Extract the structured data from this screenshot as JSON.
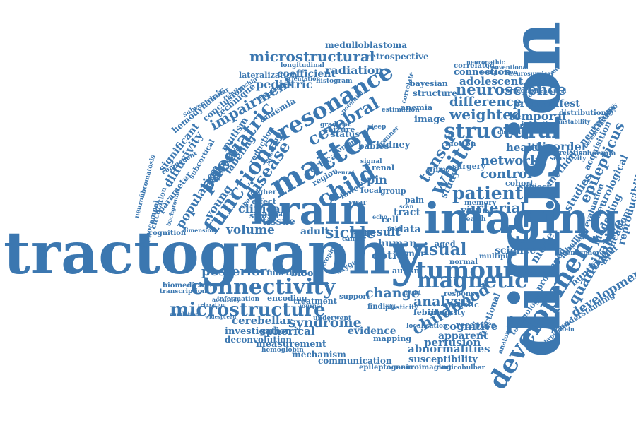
{
  "color": "#3b77b0",
  "words": [
    {
      "key": "tractography",
      "text": "tractography"
    },
    {
      "key": "diffusion",
      "text": "diffusion"
    },
    {
      "key": "imaging",
      "text": "imaging"
    },
    {
      "key": "brain",
      "text": "brain"
    },
    {
      "key": "matter",
      "text": "matter"
    },
    {
      "key": "development",
      "text": "development"
    },
    {
      "key": "tumour",
      "text": "tumour"
    },
    {
      "key": "connectivity",
      "text": "connectivity"
    },
    {
      "key": "microstructure",
      "text": "microstructure"
    },
    {
      "key": "magnetic",
      "text": "magnetic"
    },
    {
      "key": "structural",
      "text": "structural"
    },
    {
      "key": "resonance",
      "text": "resonance"
    },
    {
      "key": "functional",
      "text": "functional"
    },
    {
      "key": "paediatric",
      "text": "paediatric"
    },
    {
      "key": "child",
      "text": "child"
    },
    {
      "key": "white",
      "text": "white"
    },
    {
      "key": "childhood",
      "text": "childhood"
    },
    {
      "key": "microstructural",
      "text": "microstructural"
    },
    {
      "key": "neuroscience",
      "text": "neuroscience"
    },
    {
      "key": "patient",
      "text": "patient"
    },
    {
      "key": "visual",
      "text": "visual"
    },
    {
      "key": "syndrome",
      "text": "syndrome"
    },
    {
      "key": "impairment",
      "text": "impairment"
    },
    {
      "key": "cerebral",
      "text": "cerebral"
    },
    {
      "key": "disease",
      "text": "disease"
    },
    {
      "key": "weighted",
      "text": "weighted"
    },
    {
      "key": "difference",
      "text": "difference"
    },
    {
      "key": "arterial",
      "text": "arterial"
    },
    {
      "key": "epilepticus",
      "text": "epilepticus"
    },
    {
      "key": "quantitative",
      "text": "quantitative"
    },
    {
      "key": "developmental",
      "text": "developmental"
    },
    {
      "key": "abnormalities",
      "text": "abnormalities"
    },
    {
      "key": "analysis",
      "text": "analysis"
    },
    {
      "key": "change",
      "text": "change"
    },
    {
      "key": "sickle",
      "text": "sickle"
    },
    {
      "key": "tensor",
      "text": "tensor"
    },
    {
      "key": "control",
      "text": "control"
    },
    {
      "key": "network",
      "text": "network"
    },
    {
      "key": "healthy",
      "text": "healthy"
    },
    {
      "key": "disorder",
      "text": "disorder"
    },
    {
      "key": "temporal",
      "text": "temporal"
    },
    {
      "key": "premanifest",
      "text": "premanifest"
    },
    {
      "key": "adolescent",
      "text": "adolescent"
    },
    {
      "key": "connection",
      "text": "connection"
    },
    {
      "key": "retrospective",
      "text": "retrospective"
    },
    {
      "key": "medulloblastoma",
      "text": "medulloblastoma"
    },
    {
      "key": "radiation",
      "text": "radiation"
    },
    {
      "key": "coefficient",
      "text": "coefficient"
    },
    {
      "key": "lateralization",
      "text": "lateralization"
    },
    {
      "key": "pediatric",
      "text": "pediatric"
    },
    {
      "key": "clinical",
      "text": "clinical"
    },
    {
      "key": "volume",
      "text": "volume"
    },
    {
      "key": "posterior",
      "text": "posterior"
    },
    {
      "key": "population",
      "text": "population"
    },
    {
      "key": "diffusivity",
      "text": "diffusivity"
    },
    {
      "key": "significant",
      "text": "significant"
    },
    {
      "key": "parameter",
      "text": "parameter"
    },
    {
      "key": "hemodynamic",
      "text": "hemodynamic"
    },
    {
      "key": "conclusion",
      "text": "conclusion"
    },
    {
      "key": "technique",
      "text": "technique"
    },
    {
      "key": "young",
      "text": "young"
    },
    {
      "key": "pathway",
      "text": "pathway"
    },
    {
      "key": "labeling",
      "text": "labeling"
    },
    {
      "key": "mutism",
      "text": "mutism"
    },
    {
      "key": "anaemia",
      "text": "anaemia"
    },
    {
      "key": "cerebellar",
      "text": "cerebellar"
    },
    {
      "key": "investigation",
      "text": "investigation"
    },
    {
      "key": "deconvolution",
      "text": "deconvolution"
    },
    {
      "key": "spherical",
      "text": "spherical"
    },
    {
      "key": "measurement",
      "text": "measurement"
    },
    {
      "key": "mechanism",
      "text": "mechanism"
    },
    {
      "key": "communication",
      "text": "communication"
    },
    {
      "key": "epileptogenic",
      "text": "epileptogenic"
    },
    {
      "key": "neuroimaging",
      "text": "neuroimaging"
    },
    {
      "key": "susceptibility",
      "text": "susceptibility"
    },
    {
      "key": "perfusion",
      "text": "perfusion"
    },
    {
      "key": "apparent",
      "text": "apparent"
    },
    {
      "key": "cognitive",
      "text": "cognitive"
    },
    {
      "key": "evidence",
      "text": "evidence"
    },
    {
      "key": "mapping",
      "text": "mapping"
    },
    {
      "key": "science",
      "text": "science"
    },
    {
      "key": "human",
      "text": "human"
    },
    {
      "key": "optic",
      "text": "optic"
    },
    {
      "key": "result",
      "text": "result"
    },
    {
      "key": "data",
      "text": "data"
    },
    {
      "key": "adult",
      "text": "adult"
    },
    {
      "key": "tissue",
      "text": "tissue"
    },
    {
      "key": "cell",
      "text": "cell"
    },
    {
      "key": "tract",
      "text": "tract"
    },
    {
      "key": "spin",
      "text": "spin"
    },
    {
      "key": "status",
      "text": "status"
    },
    {
      "key": "cortical",
      "text": "cortical"
    },
    {
      "key": "region",
      "text": "region"
    },
    {
      "key": "seizure",
      "text": "seizure"
    },
    {
      "key": "structure",
      "text": "structure"
    },
    {
      "key": "bayesian",
      "text": "bayesian"
    },
    {
      "key": "anemia",
      "text": "anemia"
    },
    {
      "key": "image",
      "text": "image"
    },
    {
      "key": "kidney",
      "text": "kidney"
    },
    {
      "key": "babies",
      "text": "babies"
    },
    {
      "key": "renal",
      "text": "renal"
    },
    {
      "key": "motion",
      "text": "motion"
    },
    {
      "key": "surgery",
      "text": "surgery"
    },
    {
      "key": "cohort",
      "text": "cohort"
    },
    {
      "key": "subject",
      "text": "subject"
    },
    {
      "key": "value",
      "text": "value"
    },
    {
      "key": "study",
      "text": "study"
    },
    {
      "key": "method",
      "text": "method"
    },
    {
      "key": "model",
      "text": "model"
    },
    {
      "key": "prolonged",
      "text": "prolonged"
    },
    {
      "key": "studies",
      "text": "studies"
    },
    {
      "key": "neurology",
      "text": "neurology"
    },
    {
      "key": "acquisition",
      "text": "acquisition"
    },
    {
      "key": "ischaemia",
      "text": "ischaemia"
    },
    {
      "key": "neurological",
      "text": "neurological"
    },
    {
      "key": "reproducibility",
      "text": "reproducibility"
    },
    {
      "key": "modelling",
      "text": "modelling"
    },
    {
      "key": "application",
      "text": "application"
    },
    {
      "key": "evaluation",
      "text": "evaluation"
    },
    {
      "key": "labelling",
      "text": "labelling"
    },
    {
      "key": "huntington",
      "text": "huntington"
    },
    {
      "key": "understanding",
      "text": "understanding"
    },
    {
      "key": "fractional",
      "text": "fractional"
    },
    {
      "key": "technology",
      "text": "technology"
    },
    {
      "key": "febrile",
      "text": "febrile"
    },
    {
      "key": "integrity",
      "text": "integrity"
    },
    {
      "key": "blood",
      "text": "blood"
    },
    {
      "key": "function",
      "text": "function"
    },
    {
      "key": "encoding",
      "text": "encoding"
    },
    {
      "key": "treatment",
      "text": "treatment"
    },
    {
      "key": "biomedicine",
      "text": "biomedicine"
    },
    {
      "key": "transcription",
      "text": "transcription"
    },
    {
      "key": "information",
      "text": "information"
    },
    {
      "key": "hippocampal",
      "text": "hippocampal"
    },
    {
      "key": "cognition",
      "text": "cognition"
    },
    {
      "key": "circulation",
      "text": "circulation"
    },
    {
      "key": "neurofibromatosis",
      "text": "neurofibromatosis"
    },
    {
      "key": "longitudinal",
      "text": "longitudinal"
    },
    {
      "key": "histogram",
      "text": "histogram"
    },
    {
      "key": "orientation",
      "text": "orientation"
    },
    {
      "key": "correlated",
      "text": "correlated"
    },
    {
      "key": "conventional",
      "text": "conventional"
    },
    {
      "key": "neuropathic",
      "text": "neuropathic"
    },
    {
      "key": "correlate",
      "text": "correlate"
    },
    {
      "key": "correction",
      "text": "correction"
    },
    {
      "key": "distribution",
      "text": "distribution"
    },
    {
      "key": "different",
      "text": "different"
    },
    {
      "key": "aged",
      "text": "aged"
    },
    {
      "key": "normal",
      "text": "normal"
    },
    {
      "key": "tumor",
      "text": "tumor"
    },
    {
      "key": "autism",
      "text": "autism"
    },
    {
      "key": "statistic",
      "text": "statistic"
    },
    {
      "key": "receptive",
      "text": "receptive"
    },
    {
      "key": "localisation",
      "text": "localisation"
    },
    {
      "key": "finding",
      "text": "finding"
    },
    {
      "key": "plasticity",
      "text": "plasticity"
    },
    {
      "key": "support",
      "text": "support"
    },
    {
      "key": "hemoglobin",
      "text": "hemoglobin"
    },
    {
      "key": "corticobulbar",
      "text": "corticobulbar"
    },
    {
      "key": "spectrum",
      "text": "spectrum"
    },
    {
      "key": "higher",
      "text": "higher"
    },
    {
      "key": "effect",
      "text": "effect"
    },
    {
      "key": "spatial",
      "text": "spatial"
    },
    {
      "key": "focal",
      "text": "focal"
    },
    {
      "key": "wilms",
      "text": "wilms"
    },
    {
      "key": "memory",
      "text": "memory"
    },
    {
      "key": "health",
      "text": "health"
    },
    {
      "key": "multiple",
      "text": "multiple"
    },
    {
      "key": "response",
      "text": "response"
    },
    {
      "key": "underwent",
      "text": "underwent"
    },
    {
      "key": "cancer",
      "text": "cancer"
    },
    {
      "key": "group",
      "text": "group"
    },
    {
      "key": "lower",
      "text": "lower"
    },
    {
      "key": "year",
      "text": "year"
    },
    {
      "key": "pain",
      "text": "pain"
    },
    {
      "key": "signal",
      "text": "signal"
    },
    {
      "key": "estimation",
      "text": "estimation"
    },
    {
      "key": "accuracy",
      "text": "accuracy"
    },
    {
      "key": "specific",
      "text": "specific"
    },
    {
      "key": "global",
      "text": "global"
    },
    {
      "key": "infarction",
      "text": "infarction"
    },
    {
      "key": "sensitivity",
      "text": "sensitivity"
    },
    {
      "key": "correlation",
      "text": "correlation"
    },
    {
      "key": "hemisphere",
      "text": "hemisphere"
    },
    {
      "key": "comparison",
      "text": "comparison"
    },
    {
      "key": "neurosurgical",
      "text": "neurosurgical"
    },
    {
      "key": "constrained",
      "text": "constrained"
    },
    {
      "key": "subcortical",
      "text": "subcortical"
    },
    {
      "key": "processing",
      "text": "processing"
    },
    {
      "key": "reduction",
      "text": "reduction"
    },
    {
      "key": "gradient",
      "text": "gradient"
    },
    {
      "key": "relationship",
      "text": "relationship"
    },
    {
      "key": "properties",
      "text": "properties"
    },
    {
      "key": "background",
      "text": "background"
    },
    {
      "key": "relaxation",
      "text": "relaxation"
    },
    {
      "key": "cerebrovascular",
      "text": "cerebrovascular"
    },
    {
      "key": "widespread",
      "text": "widespread"
    },
    {
      "key": "atrophy",
      "text": "atrophy"
    },
    {
      "key": "scanner",
      "text": "scanner"
    },
    {
      "key": "hypoplasia",
      "text": "hypoplasia"
    },
    {
      "key": "anatomical",
      "text": "anatomical"
    },
    {
      "key": "psychology",
      "text": "psychology"
    },
    {
      "key": "congenital",
      "text": "congenital"
    },
    {
      "key": "instability",
      "text": "instability"
    },
    {
      "key": "disability",
      "text": "disability"
    },
    {
      "key": "sleep",
      "text": "sleep"
    },
    {
      "key": "protein",
      "text": "protein"
    },
    {
      "key": "important",
      "text": "important"
    },
    {
      "key": "journal",
      "text": "journal"
    },
    {
      "key": "corpus",
      "text": "corpus"
    },
    {
      "key": "fluid",
      "text": "fluid"
    },
    {
      "key": "oxygen",
      "text": "oxygen"
    },
    {
      "key": "potential",
      "text": "potential"
    },
    {
      "key": "behavioral",
      "text": "behavioral"
    },
    {
      "key": "component",
      "text": "component"
    },
    {
      "key": "absolution",
      "text": "absolution"
    },
    {
      "key": "dimension",
      "text": "dimension"
    },
    {
      "key": "subventricular",
      "text": "subventricular"
    },
    {
      "key": "neural",
      "text": "neural"
    },
    {
      "key": "echo",
      "text": "echo"
    },
    {
      "key": "scan",
      "text": "scan"
    },
    {
      "key": "field",
      "text": "field"
    }
  ]
}
